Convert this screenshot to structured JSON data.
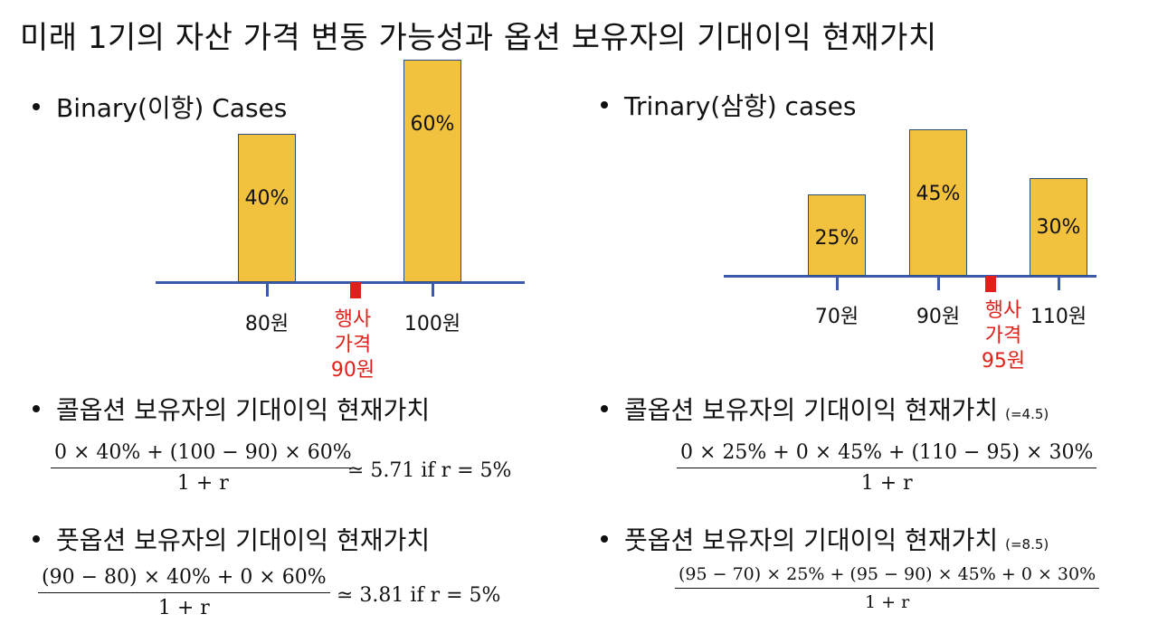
{
  "title": "미래 1기의 자산 가격 변동 가능성과 옵션 보유자의 기대이익 현재가치",
  "binary": {
    "heading": "Binary(이항) Cases",
    "strike_label": [
      "행사",
      "가격",
      "90원"
    ],
    "call_heading": "콜옵션 보유자의 기대이익 현재가치",
    "call_formula": {
      "numerator": "0 × 40% + (100 − 90) × 60%",
      "denominator": "1 + r",
      "tail": "≃ 5.71    if  r = 5%"
    },
    "put_heading": "풋옵션 보유자의 기대이익 현재가치",
    "put_formula": {
      "numerator": "(90 − 80) × 40% + 0 × 60%",
      "denominator": "1 + r",
      "tail": "≃ 3.81    if  r = 5%"
    }
  },
  "trinary": {
    "heading": "Trinary(삼항) cases",
    "strike_label": [
      "행사",
      "가격",
      "95원"
    ],
    "call_heading": "콜옵션 보유자의 기대이익 현재가치",
    "call_note": "(=4.5)",
    "call_formula": {
      "numerator": "0 × 25% + 0 × 45% + (110 − 95) × 30%",
      "denominator": "1 + r"
    },
    "put_heading": "풋옵션 보유자의 기대이익 현재가치",
    "put_note": "(=8.5)",
    "put_formula": {
      "numerator": "(95 − 70) × 25% + (95 − 90) × 45% + 0 × 30%",
      "denominator": "1 + r"
    }
  },
  "chart_data": [
    {
      "type": "bar",
      "categories": [
        "80원",
        "100원"
      ],
      "values": [
        40,
        60
      ],
      "value_labels": [
        "40%",
        "60%"
      ],
      "strike": 90,
      "strike_text": "행사 가격 90원"
    },
    {
      "type": "bar",
      "categories": [
        "70원",
        "90원",
        "110원"
      ],
      "values": [
        25,
        45,
        30
      ],
      "value_labels": [
        "25%",
        "45%",
        "30%"
      ],
      "strike": 95,
      "strike_text": "행사 가격 95원"
    }
  ],
  "colors": {
    "bar_fill": "#F2C23F",
    "bar_border": "#2E4C7E",
    "axis": "#3B5BAA",
    "strike": "#e0201a"
  }
}
